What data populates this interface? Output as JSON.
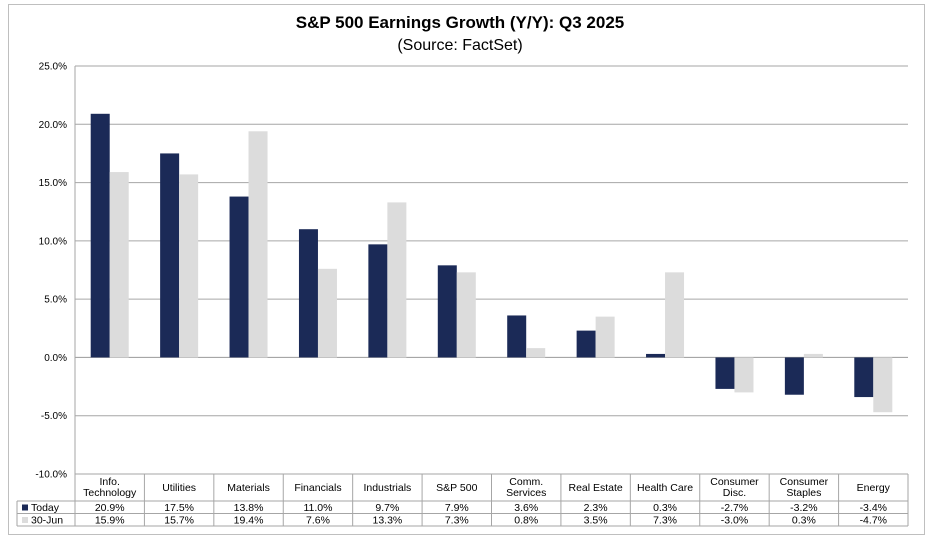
{
  "chart_data": {
    "type": "bar",
    "title": "S&P 500 Earnings Growth (Y/Y): Q3 2025",
    "subtitle": "(Source: FactSet)",
    "categories": [
      [
        "Info.",
        "Technology"
      ],
      [
        "Utilities"
      ],
      [
        "Materials"
      ],
      [
        "Financials"
      ],
      [
        "Industrials"
      ],
      [
        "S&P 500"
      ],
      [
        "Comm.",
        "Services"
      ],
      [
        "Real Estate"
      ],
      [
        "Health Care"
      ],
      [
        "Consumer",
        "Disc."
      ],
      [
        "Consumer",
        "Staples"
      ],
      [
        "Energy"
      ]
    ],
    "series": [
      {
        "name": "Today",
        "color": "#1b2a57",
        "values": [
          20.9,
          17.5,
          13.8,
          11.0,
          9.7,
          7.9,
          3.6,
          2.3,
          0.3,
          -2.7,
          -3.2,
          -3.4
        ],
        "labels": [
          "20.9%",
          "17.5%",
          "13.8%",
          "11.0%",
          "9.7%",
          "7.9%",
          "3.6%",
          "2.3%",
          "0.3%",
          "-2.7%",
          "-3.2%",
          "-3.4%"
        ]
      },
      {
        "name": "30-Jun",
        "color": "#dcdcdc",
        "values": [
          15.9,
          15.7,
          19.4,
          7.6,
          13.3,
          7.3,
          0.8,
          3.5,
          7.3,
          -3.0,
          0.3,
          -4.7
        ],
        "labels": [
          "15.9%",
          "15.7%",
          "19.4%",
          "7.6%",
          "13.3%",
          "7.3%",
          "0.8%",
          "3.5%",
          "7.3%",
          "-3.0%",
          "0.3%",
          "-4.7%"
        ]
      }
    ],
    "ylim": [
      -10,
      25
    ],
    "yticks": [
      25,
      20,
      15,
      10,
      5,
      0,
      -5,
      -10
    ],
    "ytick_labels": [
      "25.0%",
      "20.0%",
      "15.0%",
      "10.0%",
      "5.0%",
      "0.0%",
      "-5.0%",
      "-10.0%"
    ],
    "grid": true,
    "legend": "data-table"
  }
}
